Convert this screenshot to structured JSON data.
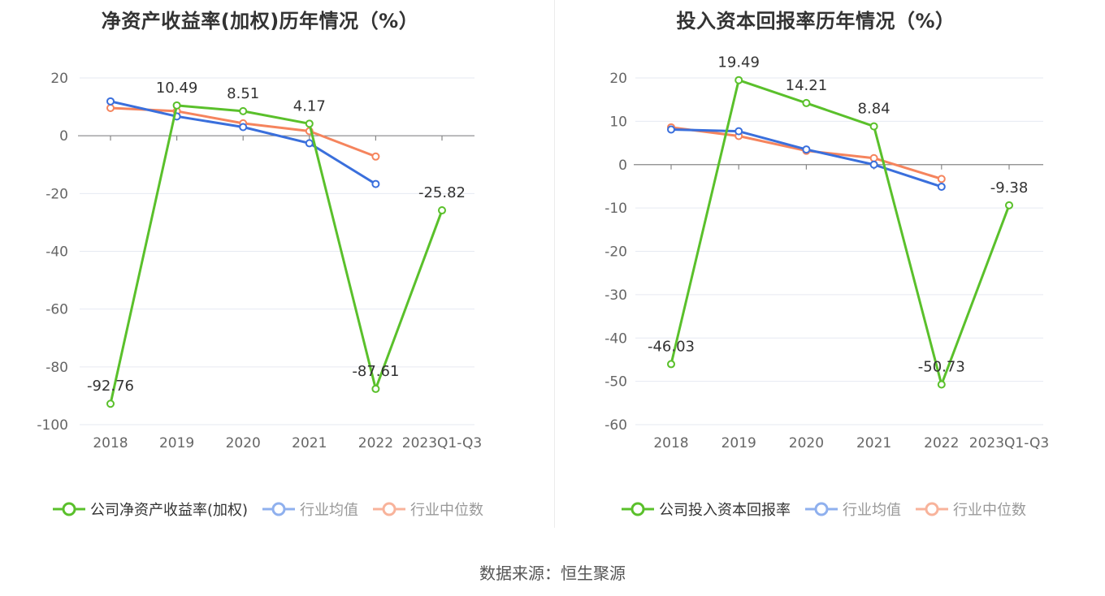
{
  "charts": [
    {
      "title": "净资产收益率(加权)历年情况（%）",
      "legend": [
        {
          "label": "公司净资产收益率(加权)",
          "color": "#5ac02b"
        },
        {
          "label": "行业均值",
          "color": "#3a6fdc"
        },
        {
          "label": "行业中位数",
          "color": "#f5845d"
        }
      ]
    },
    {
      "title": "投入资本回报率历年情况（%）",
      "legend": [
        {
          "label": "公司投入资本回报率",
          "color": "#5ac02b"
        },
        {
          "label": "行业均值",
          "color": "#3a6fdc"
        },
        {
          "label": "行业中位数",
          "color": "#f5845d"
        }
      ]
    }
  ],
  "source": "数据来源：恒生聚源",
  "chart_data": [
    {
      "type": "line",
      "title": "净资产收益率(加权)历年情况（%）",
      "categories": [
        "2018",
        "2019",
        "2020",
        "2021",
        "2022",
        "2023Q1-Q3"
      ],
      "yticks": [
        "20",
        "0",
        "-20",
        "-40",
        "-60",
        "-80",
        "-100"
      ],
      "ylim": [
        -100,
        20
      ],
      "grid": true,
      "legend_position": "bottom",
      "series": [
        {
          "name": "公司净资产收益率(加权)",
          "color": "#5ac02b",
          "values": [
            -92.76,
            10.49,
            8.51,
            4.17,
            -87.61,
            -25.82
          ],
          "labels": [
            "-92.76",
            "10.49",
            "8.51",
            "4.17",
            "-87.61",
            "-25.82"
          ]
        },
        {
          "name": "行业均值",
          "color": "#3a6fdc",
          "values": [
            11.9,
            6.7,
            3.0,
            -2.6,
            -16.7,
            null
          ]
        },
        {
          "name": "行业中位数",
          "color": "#f5845d",
          "values": [
            9.6,
            8.5,
            4.3,
            1.6,
            -7.2,
            null
          ]
        }
      ]
    },
    {
      "type": "line",
      "title": "投入资本回报率历年情况（%）",
      "categories": [
        "2018",
        "2019",
        "2020",
        "2021",
        "2022",
        "2023Q1-Q3"
      ],
      "yticks": [
        "20",
        "10",
        "0",
        "-10",
        "-20",
        "-30",
        "-40",
        "-50",
        "-60"
      ],
      "ylim": [
        -60,
        20
      ],
      "grid": true,
      "legend_position": "bottom",
      "series": [
        {
          "name": "公司投入资本回报率",
          "color": "#5ac02b",
          "values": [
            -46.03,
            19.49,
            14.21,
            8.84,
            -50.73,
            -9.38
          ],
          "labels": [
            "-46.03",
            "19.49",
            "14.21",
            "8.84",
            "-50.73",
            "-9.38"
          ]
        },
        {
          "name": "行业均值",
          "color": "#3a6fdc",
          "values": [
            8.1,
            7.7,
            3.5,
            0.0,
            -5.1,
            null
          ]
        },
        {
          "name": "行业中位数",
          "color": "#f5845d",
          "values": [
            8.6,
            6.6,
            3.2,
            1.5,
            -3.3,
            null
          ]
        }
      ]
    }
  ]
}
